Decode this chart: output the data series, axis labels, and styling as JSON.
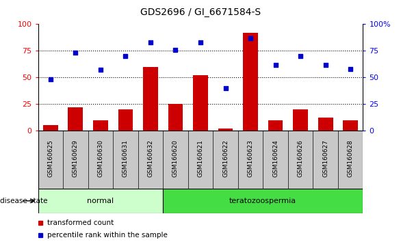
{
  "title": "GDS2696 / GI_6671584-S",
  "samples": [
    "GSM160625",
    "GSM160629",
    "GSM160630",
    "GSM160631",
    "GSM160632",
    "GSM160620",
    "GSM160621",
    "GSM160622",
    "GSM160623",
    "GSM160624",
    "GSM160626",
    "GSM160627",
    "GSM160628"
  ],
  "bar_values": [
    5,
    22,
    10,
    20,
    60,
    25,
    52,
    2,
    92,
    10,
    20,
    12,
    10
  ],
  "dot_values": [
    48,
    73,
    57,
    70,
    83,
    76,
    83,
    40,
    87,
    62,
    70,
    62,
    58
  ],
  "groups": [
    {
      "label": "normal",
      "start": 0,
      "end": 5,
      "color": "#ccffcc"
    },
    {
      "label": "teratozoospermia",
      "start": 5,
      "end": 13,
      "color": "#44dd44"
    }
  ],
  "bar_color": "#cc0000",
  "dot_color": "#0000cc",
  "ylim": [
    0,
    100
  ],
  "yticks": [
    0,
    25,
    50,
    75,
    100
  ],
  "legend_items": [
    "transformed count",
    "percentile rank within the sample"
  ],
  "disease_state_label": "disease state",
  "tick_area_color": "#c8c8c8",
  "title_fontsize": 10
}
